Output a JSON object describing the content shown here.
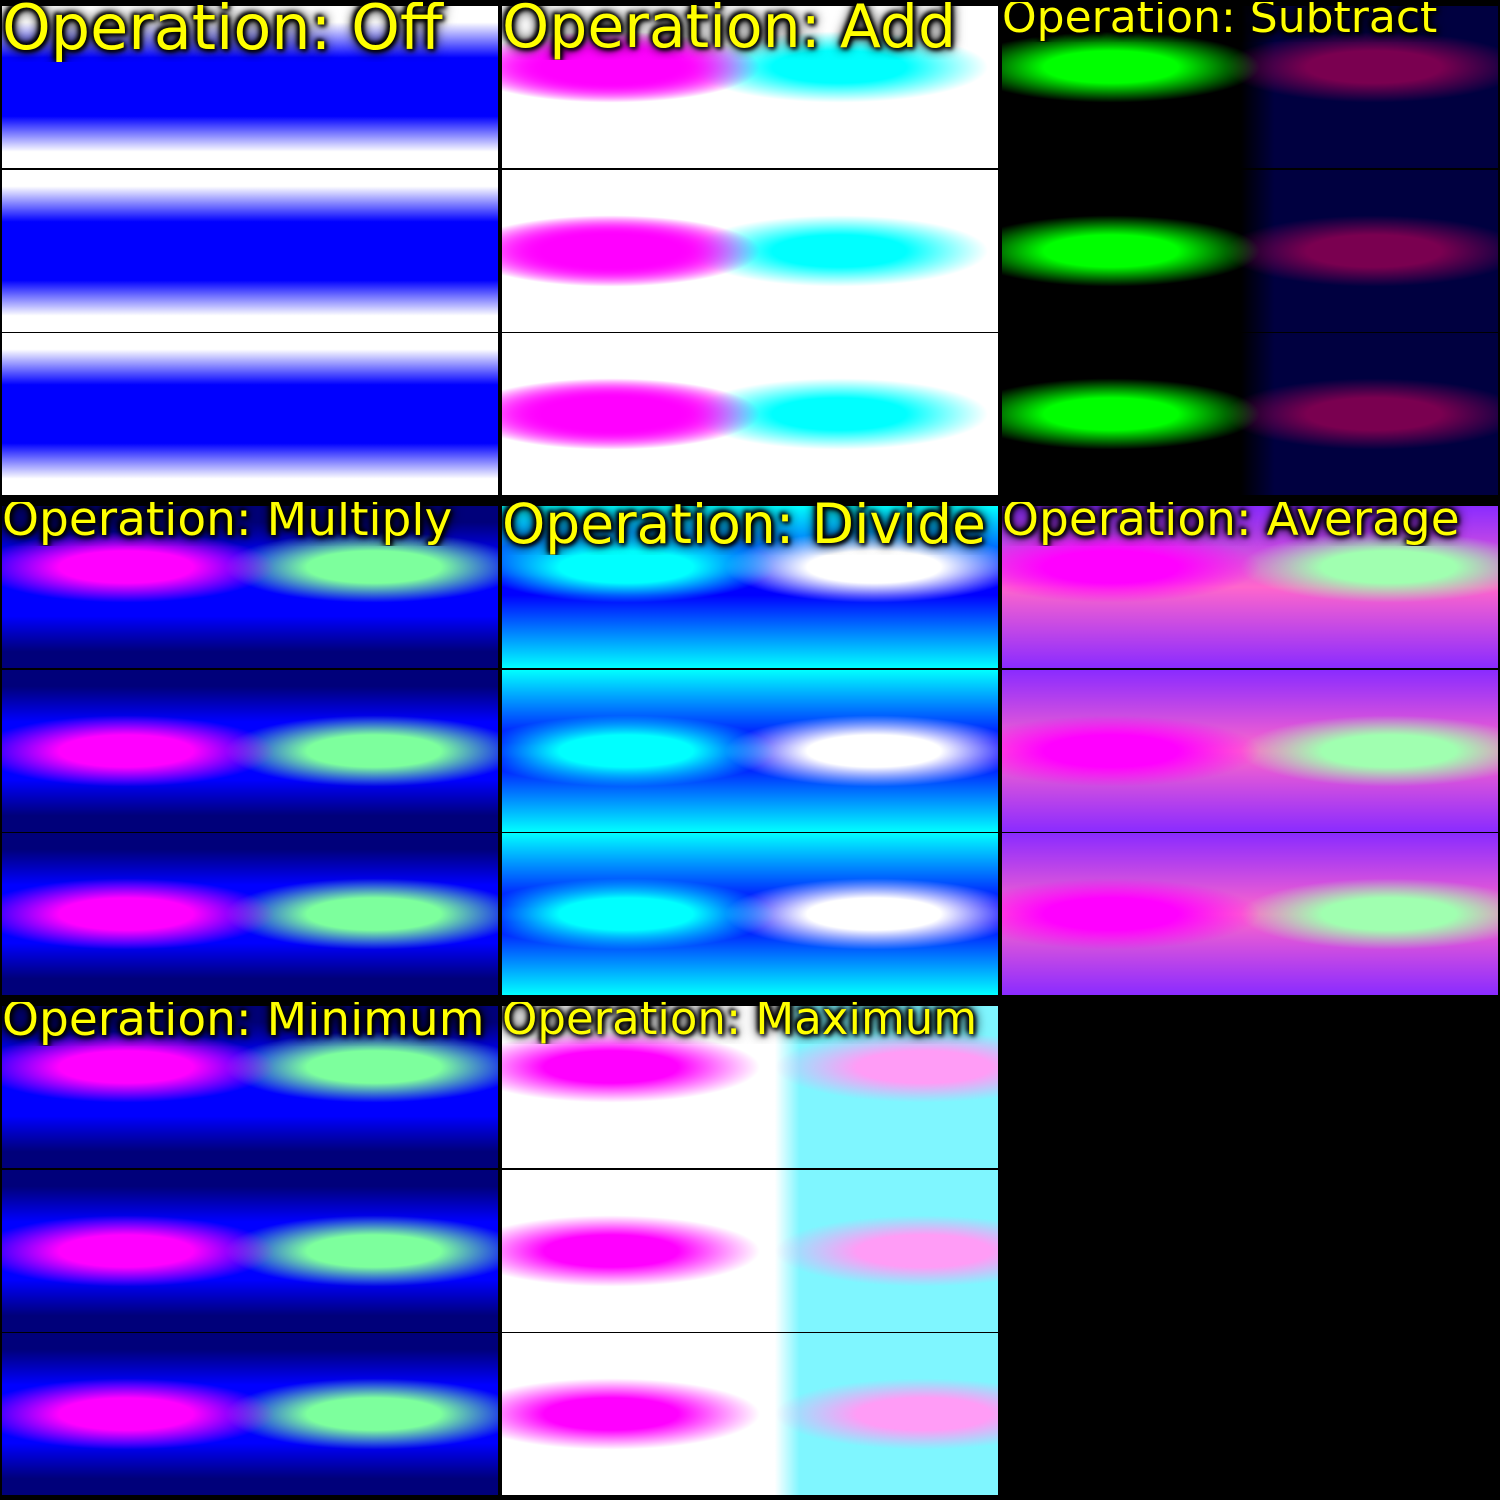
{
  "tiles": [
    {
      "label": "Operation: Off",
      "mode": "off"
    },
    {
      "label": "Operation: Add",
      "mode": "add"
    },
    {
      "label": "Operation: Subtract",
      "mode": "subtract"
    },
    {
      "label": "Operation: Multiply",
      "mode": "multiply"
    },
    {
      "label": "Operation: Divide",
      "mode": "divide"
    },
    {
      "label": "Operation: Average",
      "mode": "average"
    },
    {
      "label": "Operation: Minimum",
      "mode": "minimum"
    },
    {
      "label": "Operation: Maximum",
      "mode": "maximum"
    },
    {
      "label": "",
      "mode": "empty"
    }
  ],
  "colors": {
    "caption": "#ffff00",
    "blue": "#0000ff",
    "navy": "#00007a",
    "white": "#ffffff",
    "magenta": "#ff00ff",
    "cyan": "#00ffff",
    "green": "#00ff00",
    "pink": "#ff66cc",
    "mint": "#7dff9d",
    "violet": "#8a2bff"
  }
}
